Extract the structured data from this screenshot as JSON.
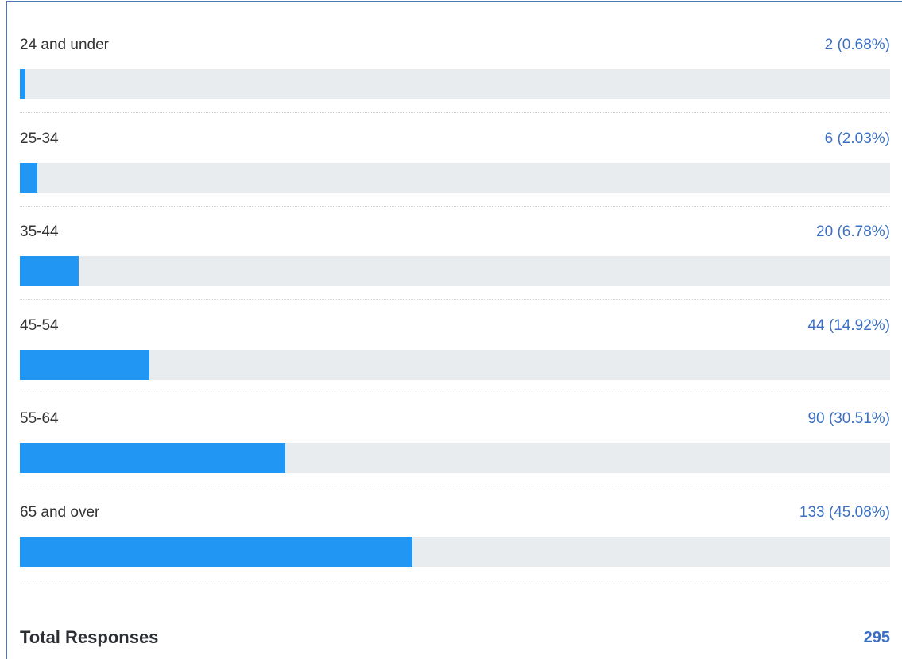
{
  "chart_data": {
    "type": "bar",
    "categories": [
      "24 and under",
      "25-34",
      "35-44",
      "45-54",
      "55-64",
      "65 and over"
    ],
    "values": [
      0.68,
      2.03,
      6.78,
      14.92,
      30.51,
      45.08
    ],
    "value_labels": [
      "2 (0.68%)",
      "6 (2.03%)",
      "20 (6.78%)",
      "44 (14.92%)",
      "90 (30.51%)",
      "133 (45.08%)"
    ],
    "xlim": [
      0,
      100
    ],
    "color": "#2196f3",
    "track_color": "#e9ecef",
    "total_label": "Total Responses",
    "total": 295
  }
}
